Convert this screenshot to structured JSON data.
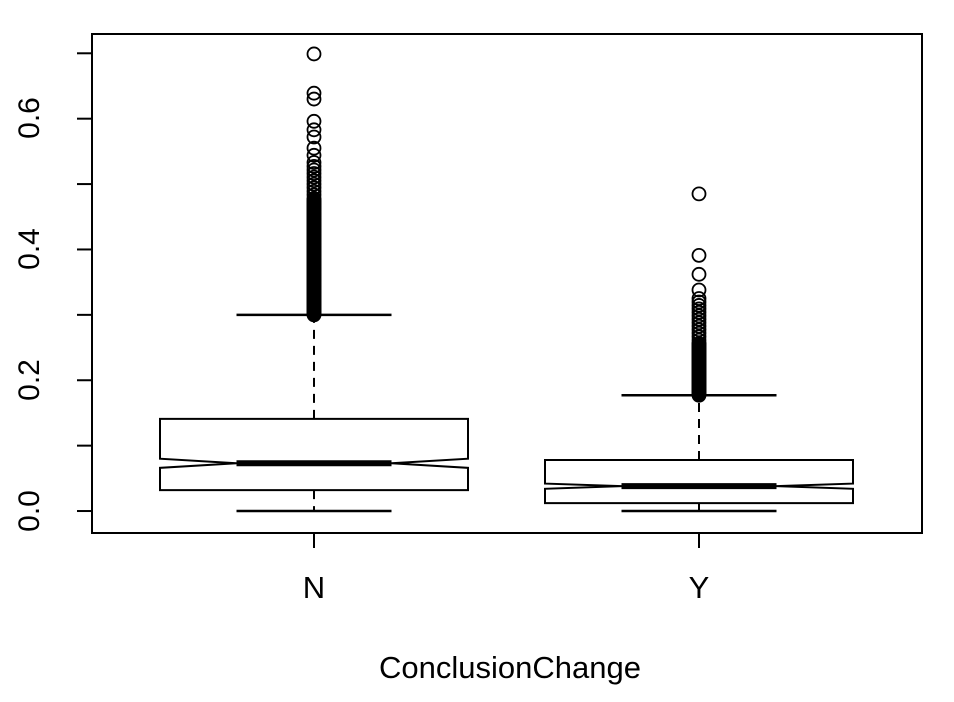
{
  "chart_data": {
    "type": "boxplot",
    "orientation": "vertical",
    "notched": true,
    "title": "",
    "xlabel": "ConclusionChange",
    "ylabel": "",
    "categories": [
      "N",
      "Y"
    ],
    "y_axis": {
      "range_shown": [
        -0.03,
        0.73
      ],
      "tick_step": 0.1,
      "ticks": [
        0.0,
        0.1,
        0.2,
        0.3,
        0.4,
        0.5,
        0.6,
        0.7
      ],
      "labeled_ticks": [
        0.0,
        0.2,
        0.4,
        0.6
      ],
      "labels": [
        "0.0",
        "0.2",
        "0.4",
        "0.6"
      ],
      "grid": false
    },
    "series": [
      {
        "category": "N",
        "whisker_low": 0.0,
        "q1": 0.032,
        "median": 0.073,
        "q3": 0.141,
        "whisker_high": 0.3,
        "notch_low": 0.066,
        "notch_high": 0.08,
        "outliers": [
          0.699,
          0.639,
          0.63,
          0.596,
          0.583,
          0.572,
          0.555,
          0.544,
          0.533
        ],
        "outlier_clusters": [
          {
            "from": 0.478,
            "to": 0.527,
            "count": 10
          },
          {
            "from": 0.3,
            "to": 0.476,
            "count": 135
          }
        ]
      },
      {
        "category": "Y",
        "whisker_low": 0.0,
        "q1": 0.012,
        "median": 0.038,
        "q3": 0.078,
        "whisker_high": 0.177,
        "notch_low": 0.034,
        "notch_high": 0.042,
        "outliers": [
          0.485,
          0.391,
          0.362,
          0.338
        ],
        "outlier_clusters": [
          {
            "from": 0.256,
            "to": 0.325,
            "count": 14
          },
          {
            "from": 0.177,
            "to": 0.256,
            "count": 80
          }
        ]
      }
    ],
    "style": {
      "stroke_color": "#000000",
      "background": "#ffffff"
    }
  }
}
